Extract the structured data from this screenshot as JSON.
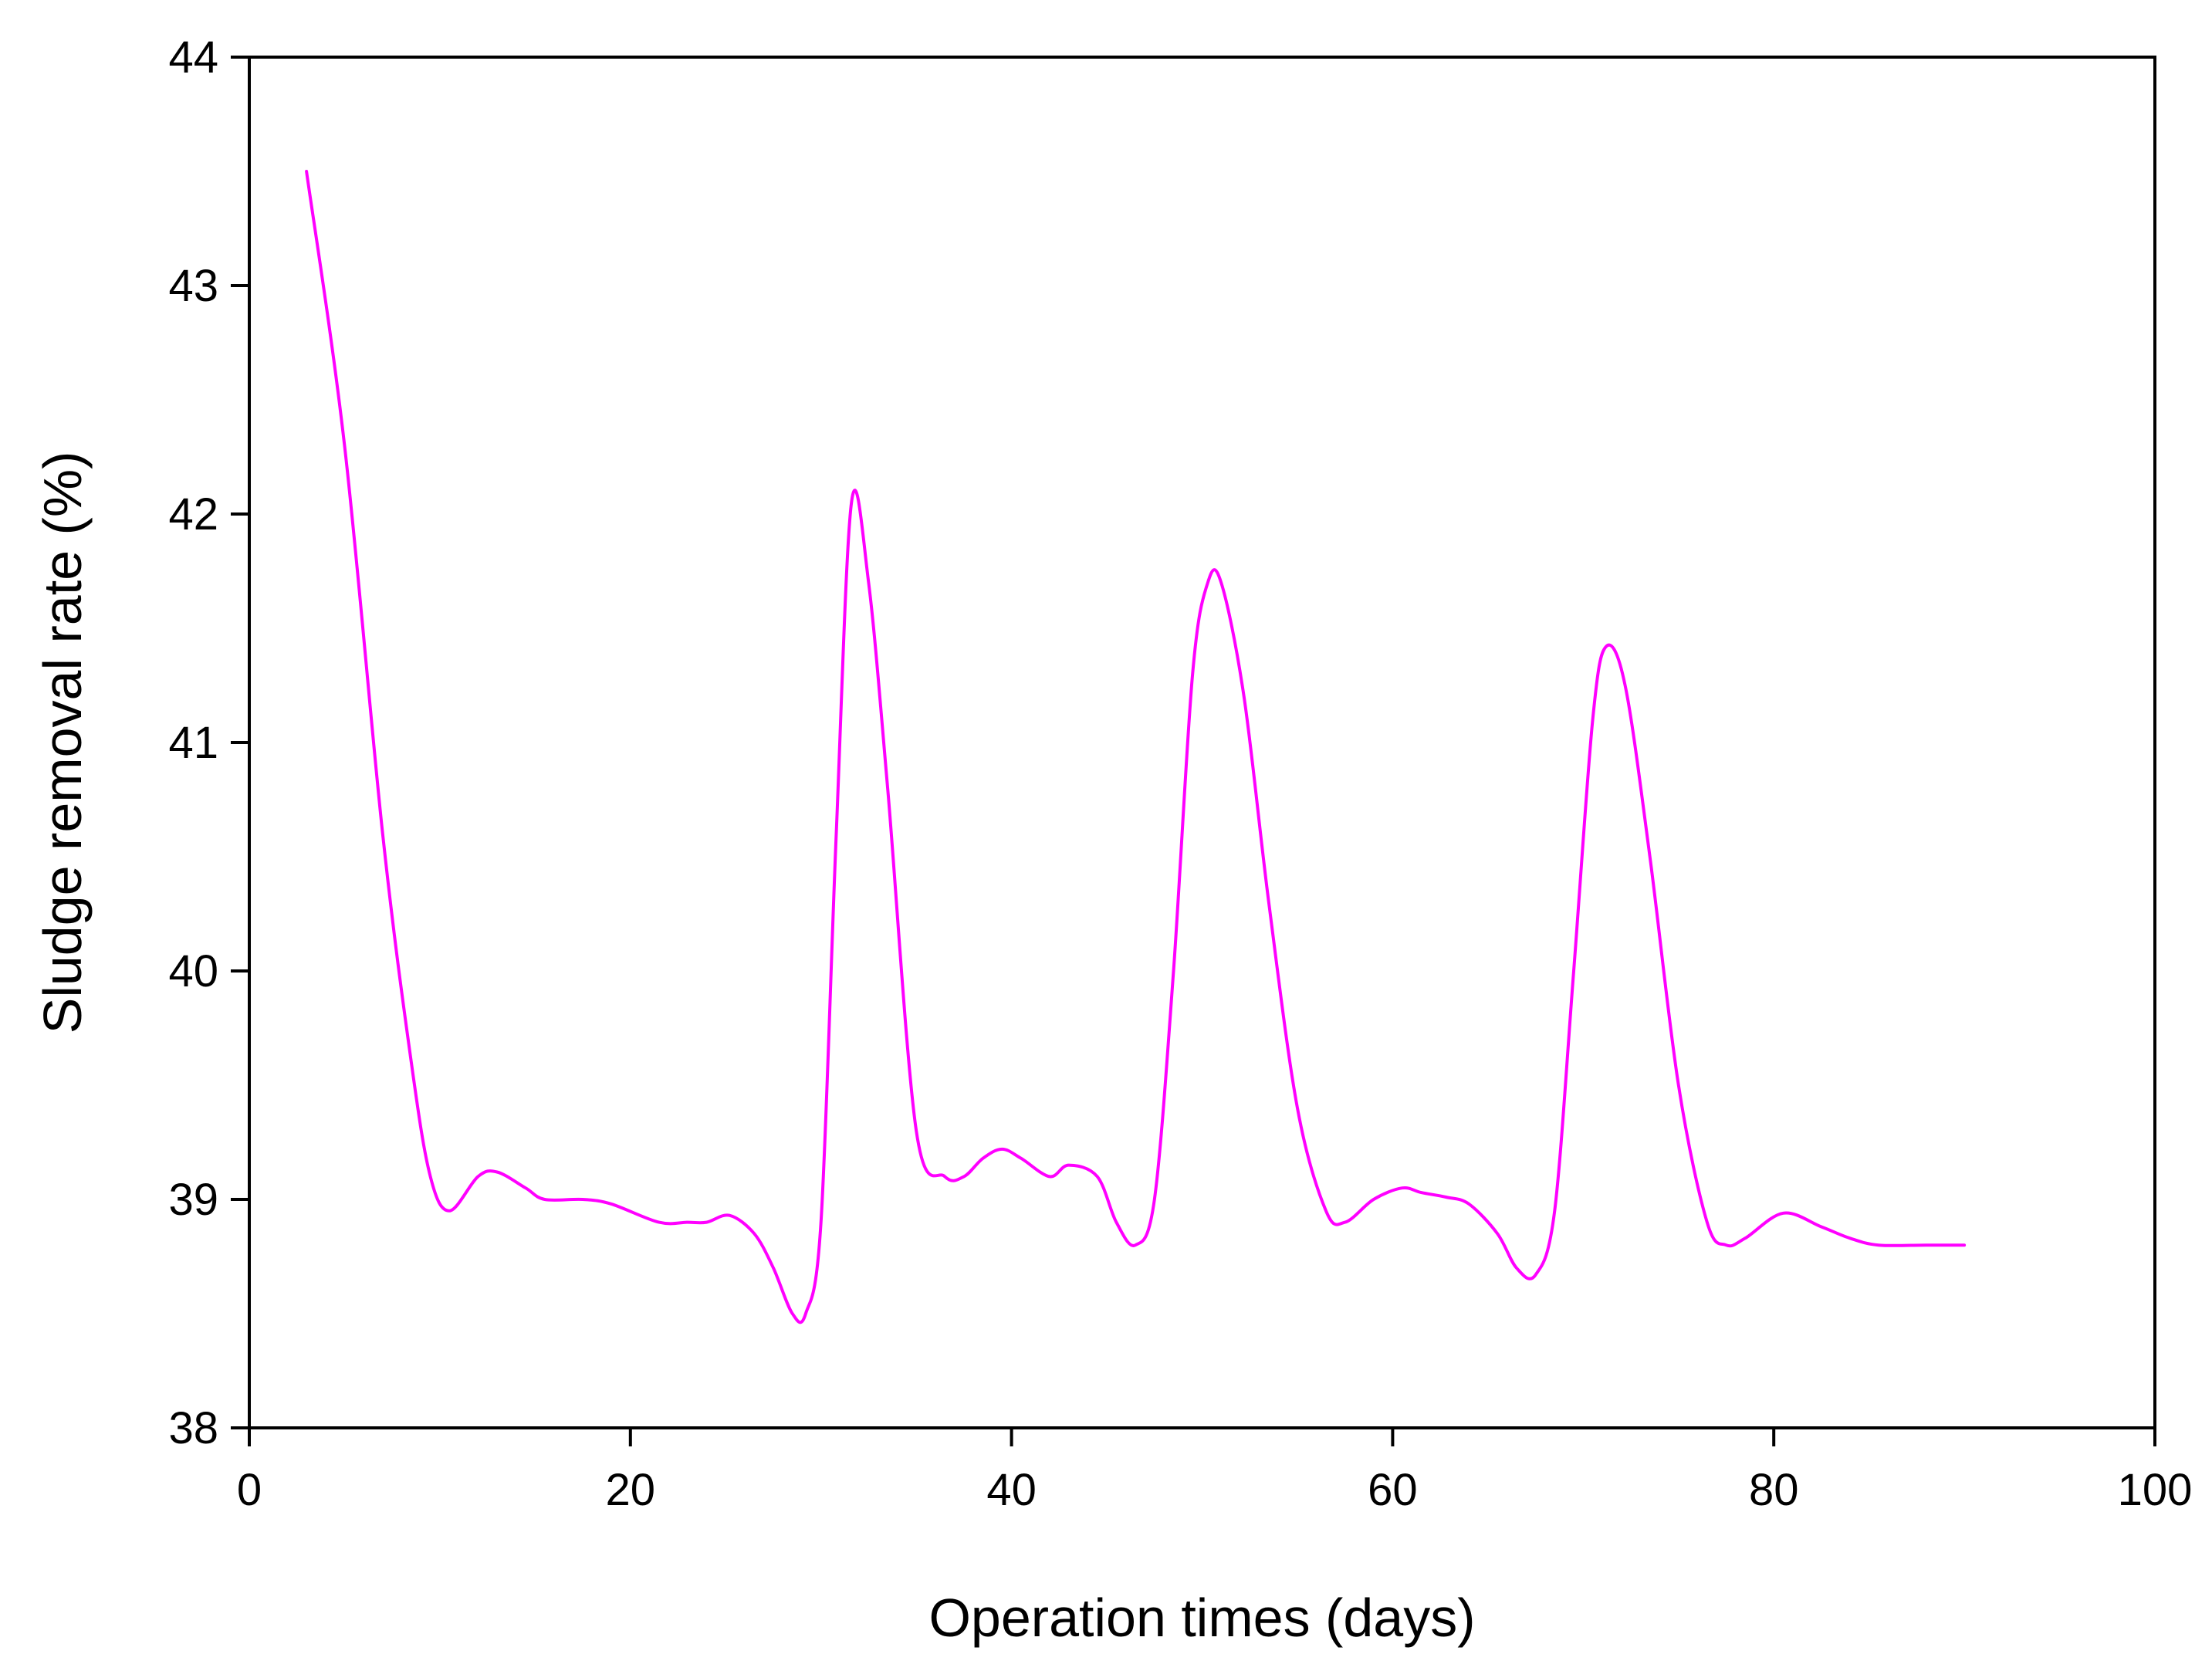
{
  "chart_data": {
    "type": "line",
    "title": "",
    "xlabel": "Operation times (days)",
    "ylabel": "Sludge removal rate (%)",
    "xlim": [
      0,
      100
    ],
    "ylim": [
      38,
      44
    ],
    "xticks": [
      0,
      20,
      40,
      60,
      80,
      100
    ],
    "yticks": [
      38,
      39,
      40,
      41,
      42,
      43,
      44
    ],
    "xtick_labels": [
      "0",
      "20",
      "40",
      "60",
      "80",
      "100"
    ],
    "ytick_labels": [
      "38",
      "39",
      "40",
      "41",
      "42",
      "43",
      "44"
    ],
    "grid": false,
    "legend": "none",
    "line_color": "#ff00ff",
    "series": [
      {
        "x": [
          3,
          5,
          7,
          8.5,
          9.5,
          10.5,
          12,
          13,
          14.5,
          15.5,
          17.5,
          19,
          21.5,
          23,
          24,
          25.2,
          26.5,
          27.5,
          28.5,
          29.2,
          30,
          30.8,
          31.6,
          32.5,
          33.5,
          35,
          36.5,
          37.5,
          38.5,
          39.5,
          40.5,
          42,
          43,
          44.5,
          45.5,
          46.5,
          47.5,
          48.5,
          49.5,
          50.3,
          51,
          52.2,
          53.5,
          55,
          56.5,
          57.5,
          59,
          60.5,
          61.5,
          62.8,
          64,
          65.5,
          66.5,
          67.5,
          68.5,
          69.5,
          70.5,
          71.2,
          72.2,
          73.5,
          75,
          76.5,
          77.5,
          78.5,
          80.5,
          82.5,
          84,
          85.5,
          88,
          90
        ],
        "y": [
          43.5,
          42.3,
          40.6,
          39.6,
          39.1,
          38.95,
          39.1,
          39.12,
          39.05,
          39.0,
          39.0,
          38.98,
          38.9,
          38.9,
          38.9,
          38.93,
          38.85,
          38.7,
          38.5,
          38.5,
          38.9,
          40.6,
          42.05,
          41.7,
          40.8,
          39.3,
          39.1,
          39.1,
          39.18,
          39.22,
          39.18,
          39.1,
          39.15,
          39.1,
          38.9,
          38.8,
          39.0,
          40.0,
          41.3,
          41.7,
          41.7,
          41.2,
          40.3,
          39.4,
          38.95,
          38.9,
          39.0,
          39.05,
          39.03,
          39.01,
          38.98,
          38.85,
          38.7,
          38.67,
          38.95,
          40.0,
          41.1,
          41.42,
          41.25,
          40.5,
          39.5,
          38.9,
          38.8,
          38.83,
          38.94,
          38.88,
          38.83,
          38.8,
          38.8,
          38.8
        ]
      }
    ]
  }
}
